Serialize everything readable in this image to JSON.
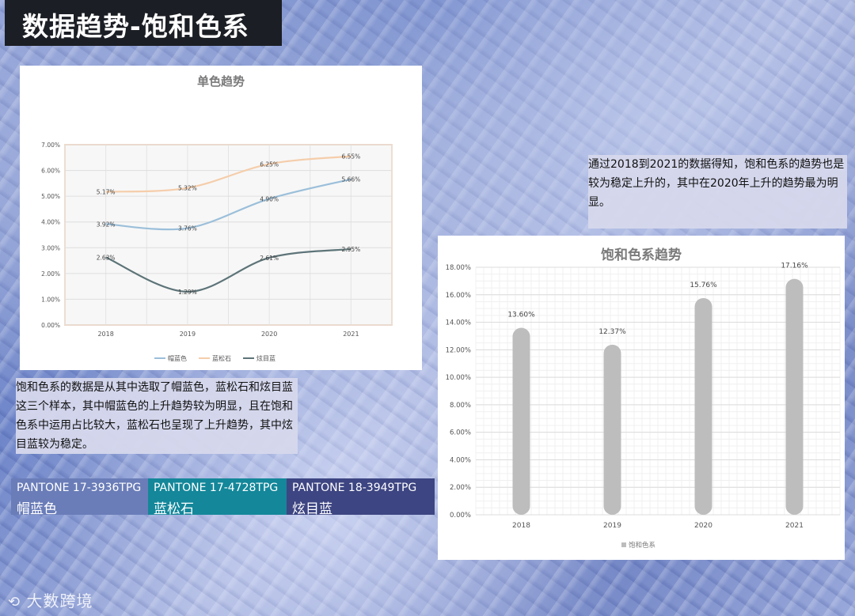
{
  "page_title": "数据趋势-饱和色系",
  "notes": {
    "left": "饱和色系的数据是从其中选取了帽蓝色，蓝松石和炫目蓝这三个样本，其中帽蓝色的上升趋势较为明显，且在饱和色系中运用占比较大，蓝松石也呈现了上升趋势，其中炫目蓝较为稳定。",
    "right": "通过2018到2021的数据得知，饱和色系的趋势也是较为稳定上升的，其中在2020年上升的趋势最为明显。"
  },
  "swatches": [
    {
      "code": "PANTONE 17-3936TPG",
      "name": "帽蓝色",
      "color": "#6a7db8"
    },
    {
      "code": "PANTONE 17-4728TPG",
      "name": "蓝松石",
      "color": "#14879a"
    },
    {
      "code": "PANTONE 18-3949TPG",
      "name": "炫目蓝",
      "color": "#3d4582"
    }
  ],
  "logo": "大数跨境",
  "chart_data": [
    {
      "type": "line",
      "title": "单色趋势",
      "categories": [
        "2018",
        "2019",
        "2020",
        "2021"
      ],
      "y_ticks": [
        "0.00%",
        "1.00%",
        "2.00%",
        "3.00%",
        "4.00%",
        "5.00%",
        "6.00%",
        "7.00%"
      ],
      "ylim": [
        0,
        7
      ],
      "grid": true,
      "legend_position": "bottom",
      "series": [
        {
          "name": "帽蓝色",
          "color": "#9bbfda",
          "values": [
            3.92,
            3.76,
            4.9,
            5.66
          ],
          "labels": [
            "3.92%",
            "3.76%",
            "4.90%",
            "5.66%"
          ]
        },
        {
          "name": "蓝松石",
          "color": "#f5cdaa",
          "values": [
            5.17,
            5.32,
            6.25,
            6.55
          ],
          "labels": [
            "5.17%",
            "5.32%",
            "6.25%",
            "6.55%"
          ]
        },
        {
          "name": "炫目蓝",
          "color": "#5d7478",
          "values": [
            2.63,
            1.29,
            2.61,
            2.95
          ],
          "labels": [
            "2.63%",
            "1.29%",
            "2.61%",
            "2.95%"
          ]
        }
      ]
    },
    {
      "type": "bar",
      "title": "饱和色系趋势",
      "categories": [
        "2018",
        "2019",
        "2020",
        "2021"
      ],
      "y_ticks": [
        "0.00%",
        "2.00%",
        "4.00%",
        "6.00%",
        "8.00%",
        "10.00%",
        "12.00%",
        "14.00%",
        "16.00%",
        "18.00%"
      ],
      "ylim": [
        0,
        18
      ],
      "grid": true,
      "legend_position": "bottom",
      "series": [
        {
          "name": "饱和色系",
          "color": "#bdbdbd",
          "values": [
            13.6,
            12.37,
            15.76,
            17.16
          ],
          "labels": [
            "13.60%",
            "12.37%",
            "15.76%",
            "17.16%"
          ]
        }
      ]
    }
  ]
}
